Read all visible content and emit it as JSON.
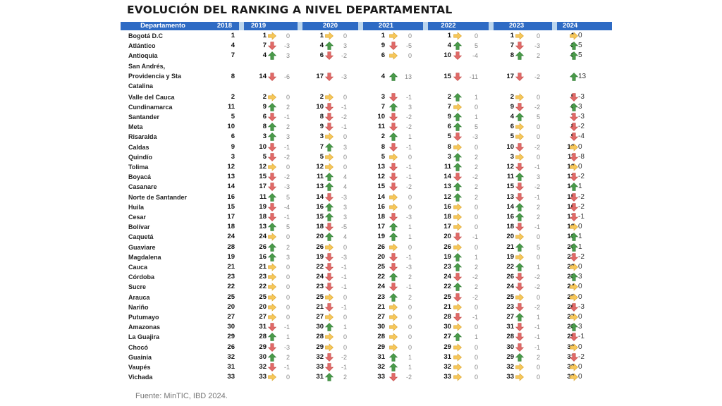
{
  "title": "EVOLUCIÓN DEL RANKING A NIVEL DEPARTAMENTAL",
  "headers": {
    "department": "Departamento",
    "years": [
      "2018",
      "2019",
      "2020",
      "2021",
      "2022",
      "2023",
      "2024"
    ]
  },
  "colors": {
    "header_bg": "#2e6bc4",
    "header_gap": "#bcd6ee",
    "arrow_up": "#4a9a4a",
    "arrow_down": "#d9534f",
    "arrow_flat": "#f0b93a"
  },
  "rows": [
    {
      "dept": "Bogotá D.C",
      "r2018": "1",
      "y": [
        [
          "1",
          "0"
        ],
        [
          "1",
          "0"
        ],
        [
          "1",
          "0"
        ],
        [
          "1",
          "0"
        ],
        [
          "1",
          "0"
        ],
        [
          "1",
          "0"
        ]
      ]
    },
    {
      "dept": "Atlántico",
      "r2018": "4",
      "y": [
        [
          "7",
          "-3"
        ],
        [
          "4",
          "3"
        ],
        [
          "9",
          "-5"
        ],
        [
          "4",
          "5"
        ],
        [
          "7",
          "-3"
        ],
        [
          "2",
          "5"
        ]
      ]
    },
    {
      "dept": "Antioquia",
      "r2018": "7",
      "y": [
        [
          "4",
          "3"
        ],
        [
          "6",
          "-2"
        ],
        [
          "6",
          "0"
        ],
        [
          "10",
          "-4"
        ],
        [
          "8",
          "2"
        ],
        [
          "3",
          "5"
        ]
      ]
    },
    {
      "dept": "San Andrés, Providencia y Sta Catalina",
      "r2018": "8",
      "y": [
        [
          "14",
          "-6"
        ],
        [
          "17",
          "-3"
        ],
        [
          "4",
          "13"
        ],
        [
          "15",
          "-11"
        ],
        [
          "17",
          "-2"
        ],
        [
          "4",
          "13"
        ]
      ]
    },
    {
      "dept": "Valle del Cauca",
      "r2018": "2",
      "y": [
        [
          "2",
          "0"
        ],
        [
          "2",
          "0"
        ],
        [
          "3",
          "-1"
        ],
        [
          "2",
          "1"
        ],
        [
          "2",
          "0"
        ],
        [
          "5",
          "-3"
        ]
      ]
    },
    {
      "dept": "Cundinamarca",
      "r2018": "11",
      "y": [
        [
          "9",
          "2"
        ],
        [
          "10",
          "-1"
        ],
        [
          "7",
          "3"
        ],
        [
          "7",
          "0"
        ],
        [
          "9",
          "-2"
        ],
        [
          "6",
          "3"
        ]
      ]
    },
    {
      "dept": "Santander",
      "r2018": "5",
      "y": [
        [
          "6",
          "-1"
        ],
        [
          "8",
          "-2"
        ],
        [
          "10",
          "-2"
        ],
        [
          "9",
          "1"
        ],
        [
          "4",
          "5"
        ],
        [
          "7",
          "-3"
        ]
      ]
    },
    {
      "dept": "Meta",
      "r2018": "10",
      "y": [
        [
          "8",
          "2"
        ],
        [
          "9",
          "-1"
        ],
        [
          "11",
          "-2"
        ],
        [
          "6",
          "5"
        ],
        [
          "6",
          "0"
        ],
        [
          "8",
          "-2"
        ]
      ]
    },
    {
      "dept": "Risaralda",
      "r2018": "6",
      "y": [
        [
          "3",
          "3"
        ],
        [
          "3",
          "0"
        ],
        [
          "2",
          "1"
        ],
        [
          "5",
          "-3"
        ],
        [
          "5",
          "0"
        ],
        [
          "9",
          "-4"
        ]
      ]
    },
    {
      "dept": "Caldas",
      "r2018": "9",
      "y": [
        [
          "10",
          "-1"
        ],
        [
          "7",
          "3"
        ],
        [
          "8",
          "-1"
        ],
        [
          "8",
          "0"
        ],
        [
          "10",
          "-2"
        ],
        [
          "10",
          "0"
        ]
      ]
    },
    {
      "dept": "Quindío",
      "r2018": "3",
      "y": [
        [
          "5",
          "-2"
        ],
        [
          "5",
          "0"
        ],
        [
          "5",
          "0"
        ],
        [
          "3",
          "2"
        ],
        [
          "3",
          "0"
        ],
        [
          "11",
          "-8"
        ]
      ]
    },
    {
      "dept": "Tolima",
      "r2018": "12",
      "y": [
        [
          "12",
          "0"
        ],
        [
          "12",
          "0"
        ],
        [
          "13",
          "-1"
        ],
        [
          "11",
          "2"
        ],
        [
          "12",
          "-1"
        ],
        [
          "12",
          "0"
        ]
      ]
    },
    {
      "dept": "Boyacá",
      "r2018": "13",
      "y": [
        [
          "15",
          "-2"
        ],
        [
          "11",
          "4"
        ],
        [
          "12",
          "-1"
        ],
        [
          "14",
          "-2"
        ],
        [
          "11",
          "3"
        ],
        [
          "13",
          "-2"
        ]
      ]
    },
    {
      "dept": "Casanare",
      "r2018": "14",
      "y": [
        [
          "17",
          "-3"
        ],
        [
          "13",
          "4"
        ],
        [
          "15",
          "-2"
        ],
        [
          "13",
          "2"
        ],
        [
          "15",
          "-2"
        ],
        [
          "14",
          "1"
        ]
      ]
    },
    {
      "dept": "Norte de Santander",
      "r2018": "16",
      "y": [
        [
          "11",
          "5"
        ],
        [
          "14",
          "-3"
        ],
        [
          "14",
          "0"
        ],
        [
          "12",
          "2"
        ],
        [
          "13",
          "-1"
        ],
        [
          "15",
          "-2"
        ]
      ]
    },
    {
      "dept": "Huila",
      "r2018": "15",
      "y": [
        [
          "19",
          "-4"
        ],
        [
          "16",
          "3"
        ],
        [
          "16",
          "0"
        ],
        [
          "16",
          "0"
        ],
        [
          "14",
          "2"
        ],
        [
          "16",
          "-2"
        ]
      ]
    },
    {
      "dept": "Cesar",
      "r2018": "17",
      "y": [
        [
          "18",
          "-1"
        ],
        [
          "15",
          "3"
        ],
        [
          "18",
          "-3"
        ],
        [
          "18",
          "0"
        ],
        [
          "16",
          "2"
        ],
        [
          "17",
          "-1"
        ]
      ]
    },
    {
      "dept": "Bolívar",
      "r2018": "18",
      "y": [
        [
          "13",
          "5"
        ],
        [
          "18",
          "-5"
        ],
        [
          "17",
          "1"
        ],
        [
          "17",
          "0"
        ],
        [
          "18",
          "-1"
        ],
        [
          "18",
          "0"
        ]
      ]
    },
    {
      "dept": "Caquetá",
      "r2018": "24",
      "y": [
        [
          "24",
          "0"
        ],
        [
          "20",
          "4"
        ],
        [
          "19",
          "1"
        ],
        [
          "20",
          "-1"
        ],
        [
          "20",
          "0"
        ],
        [
          "19",
          "1"
        ]
      ]
    },
    {
      "dept": "Guaviare",
      "r2018": "28",
      "y": [
        [
          "26",
          "2"
        ],
        [
          "26",
          "0"
        ],
        [
          "26",
          "0"
        ],
        [
          "26",
          "0"
        ],
        [
          "21",
          "5"
        ],
        [
          "20",
          "1"
        ]
      ]
    },
    {
      "dept": "Magdalena",
      "r2018": "19",
      "y": [
        [
          "16",
          "3"
        ],
        [
          "19",
          "-3"
        ],
        [
          "20",
          "-1"
        ],
        [
          "19",
          "1"
        ],
        [
          "19",
          "0"
        ],
        [
          "21",
          "-2"
        ]
      ]
    },
    {
      "dept": "Cauca",
      "r2018": "21",
      "y": [
        [
          "21",
          "0"
        ],
        [
          "22",
          "-1"
        ],
        [
          "25",
          "-3"
        ],
        [
          "23",
          "2"
        ],
        [
          "22",
          "1"
        ],
        [
          "22",
          "0"
        ]
      ]
    },
    {
      "dept": "Córdoba",
      "r2018": "23",
      "y": [
        [
          "23",
          "0"
        ],
        [
          "24",
          "-1"
        ],
        [
          "22",
          "2"
        ],
        [
          "24",
          "-2"
        ],
        [
          "26",
          "-2"
        ],
        [
          "23",
          "3"
        ]
      ]
    },
    {
      "dept": "Sucre",
      "r2018": "22",
      "y": [
        [
          "22",
          "0"
        ],
        [
          "23",
          "-1"
        ],
        [
          "24",
          "-1"
        ],
        [
          "22",
          "2"
        ],
        [
          "24",
          "-2"
        ],
        [
          "24",
          "0"
        ]
      ]
    },
    {
      "dept": "Arauca",
      "r2018": "25",
      "y": [
        [
          "25",
          "0"
        ],
        [
          "25",
          "0"
        ],
        [
          "23",
          "2"
        ],
        [
          "25",
          "-2"
        ],
        [
          "25",
          "0"
        ],
        [
          "25",
          "0"
        ]
      ]
    },
    {
      "dept": "Nariño",
      "r2018": "20",
      "y": [
        [
          "20",
          "0"
        ],
        [
          "21",
          "-1"
        ],
        [
          "21",
          "0"
        ],
        [
          "21",
          "0"
        ],
        [
          "23",
          "-2"
        ],
        [
          "26",
          "-3"
        ]
      ]
    },
    {
      "dept": "Putumayo",
      "r2018": "27",
      "y": [
        [
          "27",
          "0"
        ],
        [
          "27",
          "0"
        ],
        [
          "27",
          "0"
        ],
        [
          "28",
          "-1"
        ],
        [
          "27",
          "1"
        ],
        [
          "27",
          "0"
        ]
      ]
    },
    {
      "dept": "Amazonas",
      "r2018": "30",
      "y": [
        [
          "31",
          "-1"
        ],
        [
          "30",
          "1"
        ],
        [
          "30",
          "0"
        ],
        [
          "30",
          "0"
        ],
        [
          "31",
          "-1"
        ],
        [
          "28",
          "3"
        ]
      ]
    },
    {
      "dept": "La Guajira",
      "r2018": "29",
      "y": [
        [
          "28",
          "1"
        ],
        [
          "28",
          "0"
        ],
        [
          "28",
          "0"
        ],
        [
          "27",
          "1"
        ],
        [
          "28",
          "-1"
        ],
        [
          "29",
          "-1"
        ]
      ]
    },
    {
      "dept": "Chocó",
      "r2018": "26",
      "y": [
        [
          "29",
          "-3"
        ],
        [
          "29",
          "0"
        ],
        [
          "29",
          "0"
        ],
        [
          "29",
          "0"
        ],
        [
          "30",
          "-1"
        ],
        [
          "30",
          "0"
        ]
      ]
    },
    {
      "dept": "Guainía",
      "r2018": "32",
      "y": [
        [
          "30",
          "2"
        ],
        [
          "32",
          "-2"
        ],
        [
          "31",
          "1"
        ],
        [
          "31",
          "0"
        ],
        [
          "29",
          "2"
        ],
        [
          "31",
          "-2"
        ]
      ]
    },
    {
      "dept": "Vaupés",
      "r2018": "31",
      "y": [
        [
          "32",
          "-1"
        ],
        [
          "33",
          "-1"
        ],
        [
          "32",
          "1"
        ],
        [
          "32",
          "0"
        ],
        [
          "32",
          "0"
        ],
        [
          "32",
          "0"
        ]
      ]
    },
    {
      "dept": "Vichada",
      "r2018": "33",
      "y": [
        [
          "33",
          "0"
        ],
        [
          "31",
          "2"
        ],
        [
          "33",
          "-2"
        ],
        [
          "33",
          "0"
        ],
        [
          "33",
          "0"
        ],
        [
          "33",
          "0"
        ]
      ]
    }
  ],
  "source": "Fuente: MinTIC, IBD 2024."
}
